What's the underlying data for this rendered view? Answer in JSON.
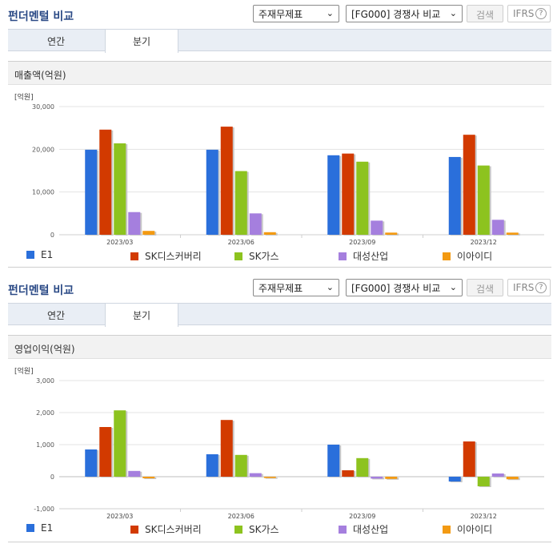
{
  "panels": [
    {
      "title": "펀더멘털 비교",
      "select_statement": "주재무제표",
      "select_peer": "[FG000] 경쟁사 비교",
      "search_label": "검색",
      "ifrs_label": "IFRS",
      "help_glyph": "?",
      "tabs": [
        "연간",
        "분기"
      ],
      "active_tab": 1,
      "chart_heading": "매출액(억원)"
    },
    {
      "title": "펀더멘털 비교",
      "select_statement": "주재무제표",
      "select_peer": "[FG000] 경쟁사 비교",
      "search_label": "검색",
      "ifrs_label": "IFRS",
      "help_glyph": "?",
      "tabs": [
        "연간",
        "분기"
      ],
      "active_tab": 1,
      "chart_heading": "영업이익(억원)"
    }
  ],
  "chart_data": [
    {
      "type": "bar",
      "title": "매출액(억원)",
      "unit_label": "[억원]",
      "categories": [
        "2023/03",
        "2023/06",
        "2023/09",
        "2023/12"
      ],
      "ylim": [
        0,
        30000
      ],
      "yticks": [
        0,
        10000,
        20000,
        30000
      ],
      "ytick_labels": [
        "0",
        "10,000",
        "20,000",
        "30,000"
      ],
      "grid": true,
      "legend": "bottom",
      "series": [
        {
          "name": "E1",
          "color": "#2a6fdb",
          "values": [
            19900,
            19900,
            18600,
            18200
          ]
        },
        {
          "name": "SK디스커버리",
          "color": "#d23a00",
          "values": [
            24600,
            25300,
            19000,
            23400
          ]
        },
        {
          "name": "SK가스",
          "color": "#8dc31f",
          "values": [
            21400,
            14900,
            17100,
            16200
          ]
        },
        {
          "name": "대성산업",
          "color": "#a57fde",
          "values": [
            5300,
            5000,
            3300,
            3500
          ]
        },
        {
          "name": "이아이디",
          "color": "#f39a12",
          "values": [
            900,
            600,
            500,
            500
          ]
        }
      ]
    },
    {
      "type": "bar",
      "title": "영업이익(억원)",
      "unit_label": "[억원]",
      "categories": [
        "2023/03",
        "2023/06",
        "2023/09",
        "2023/12"
      ],
      "ylim": [
        -1000,
        3000
      ],
      "yticks": [
        -1000,
        0,
        1000,
        2000,
        3000
      ],
      "ytick_labels": [
        "-1,000",
        "0",
        "1,000",
        "2,000",
        "3,000"
      ],
      "grid": true,
      "legend": "bottom",
      "series": [
        {
          "name": "E1",
          "color": "#2a6fdb",
          "values": [
            850,
            700,
            1000,
            -150
          ]
        },
        {
          "name": "SK디스커버리",
          "color": "#d23a00",
          "values": [
            1550,
            1770,
            200,
            1100
          ]
        },
        {
          "name": "SK가스",
          "color": "#8dc31f",
          "values": [
            2070,
            680,
            580,
            -300
          ]
        },
        {
          "name": "대성산업",
          "color": "#a57fde",
          "values": [
            180,
            110,
            -60,
            100
          ]
        },
        {
          "name": "이아이디",
          "color": "#f39a12",
          "values": [
            -50,
            -40,
            -70,
            -80
          ]
        }
      ]
    }
  ]
}
